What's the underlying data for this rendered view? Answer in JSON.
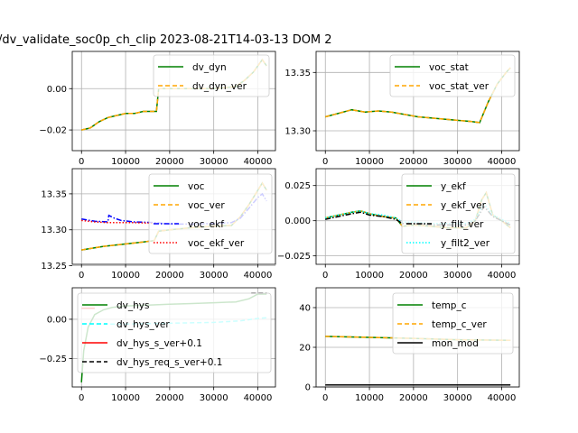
{
  "figure": {
    "title": "/dv_validate_soc0p_ch_clip   2023-08-21T14-03-13 DOM 2"
  },
  "chart_data": [
    {
      "type": "line",
      "xlim": [
        -2100,
        44000
      ],
      "ylim": [
        -0.03,
        0.018
      ],
      "xticks": [
        0,
        10000,
        20000,
        30000,
        40000
      ],
      "xtick_labels": [
        "0",
        "10000",
        "20000",
        "30000",
        "40000"
      ],
      "yticks": [
        -0.02,
        0.0
      ],
      "ytick_labels": [
        "−0.02",
        "0.00"
      ],
      "grid": true,
      "legend_position": "upper-right",
      "series": [
        {
          "name": "dv_dyn",
          "color": "#008000",
          "style": "solid",
          "x": [
            0,
            2000,
            4000,
            6000,
            8000,
            10000,
            12000,
            14000,
            16000,
            17000,
            17500,
            20000,
            25000,
            30000,
            35000,
            37000,
            39000,
            40000,
            41000,
            42000
          ],
          "y": [
            -0.02,
            -0.019,
            -0.016,
            -0.014,
            -0.013,
            -0.012,
            -0.012,
            -0.011,
            -0.011,
            -0.011,
            0.0,
            0.0,
            0.0,
            0.0,
            0.001,
            0.004,
            0.008,
            0.011,
            0.014,
            0.011
          ]
        },
        {
          "name": "dv_dyn_ver",
          "color": "#ffa500",
          "style": "dashed",
          "x": [
            0,
            2000,
            4000,
            6000,
            8000,
            10000,
            12000,
            14000,
            16000,
            17000,
            17500,
            20000,
            25000,
            30000,
            35000,
            37000,
            39000,
            40000,
            41000,
            42000
          ],
          "y": [
            -0.02,
            -0.019,
            -0.016,
            -0.014,
            -0.013,
            -0.012,
            -0.012,
            -0.011,
            -0.011,
            -0.011,
            0.0,
            0.0,
            0.0,
            0.0,
            0.001,
            0.004,
            0.008,
            0.011,
            0.014,
            0.011
          ]
        }
      ]
    },
    {
      "type": "line",
      "xlim": [
        -2100,
        44000
      ],
      "ylim": [
        13.283,
        13.368
      ],
      "xticks": [
        0,
        10000,
        20000,
        30000,
        40000
      ],
      "xtick_labels": [
        "0",
        "10000",
        "20000",
        "30000",
        "40000"
      ],
      "yticks": [
        13.3,
        13.35
      ],
      "ytick_labels": [
        "13.30",
        "13.35"
      ],
      "grid": true,
      "legend_position": "upper-right",
      "series": [
        {
          "name": "voc_stat",
          "color": "#008000",
          "style": "solid",
          "x": [
            0,
            3000,
            6000,
            9000,
            12000,
            15000,
            18000,
            21000,
            24000,
            27000,
            30000,
            33000,
            35000,
            37000,
            39000,
            41000,
            42000
          ],
          "y": [
            13.312,
            13.315,
            13.318,
            13.316,
            13.317,
            13.316,
            13.314,
            13.312,
            13.311,
            13.31,
            13.309,
            13.308,
            13.307,
            13.325,
            13.34,
            13.35,
            13.354
          ]
        },
        {
          "name": "voc_stat_ver",
          "color": "#ffa500",
          "style": "dashed",
          "x": [
            0,
            3000,
            6000,
            9000,
            12000,
            15000,
            18000,
            21000,
            24000,
            27000,
            30000,
            33000,
            35000,
            37000,
            39000,
            41000,
            42000
          ],
          "y": [
            13.312,
            13.315,
            13.318,
            13.316,
            13.317,
            13.316,
            13.314,
            13.312,
            13.311,
            13.31,
            13.309,
            13.308,
            13.307,
            13.325,
            13.34,
            13.35,
            13.354
          ]
        }
      ]
    },
    {
      "type": "line",
      "xlim": [
        -2100,
        44000
      ],
      "ylim": [
        13.252,
        13.385
      ],
      "xticks": [
        0,
        10000,
        20000,
        30000,
        40000
      ],
      "xtick_labels": [
        "0",
        "10000",
        "20000",
        "30000",
        "40000"
      ],
      "yticks": [
        13.25,
        13.3,
        13.35
      ],
      "ytick_labels": [
        "13.25",
        "13.30",
        "13.35"
      ],
      "grid": true,
      "legend_position": "upper-right",
      "series": [
        {
          "name": "voc",
          "color": "#008000",
          "style": "solid",
          "x": [
            0,
            2000,
            5000,
            8000,
            11000,
            14000,
            16500,
            17500,
            20000,
            25000,
            30000,
            34000,
            36000,
            38000,
            40000,
            41000,
            42000
          ],
          "y": [
            13.272,
            13.274,
            13.277,
            13.279,
            13.281,
            13.283,
            13.285,
            13.298,
            13.3,
            13.303,
            13.305,
            13.306,
            13.318,
            13.335,
            13.355,
            13.365,
            13.355
          ]
        },
        {
          "name": "voc_ver",
          "color": "#ffa500",
          "style": "dashed",
          "x": [
            0,
            2000,
            5000,
            8000,
            11000,
            14000,
            16500,
            17500,
            20000,
            25000,
            30000,
            34000,
            36000,
            38000,
            40000,
            41000,
            42000
          ],
          "y": [
            13.272,
            13.274,
            13.277,
            13.279,
            13.281,
            13.283,
            13.285,
            13.298,
            13.3,
            13.303,
            13.305,
            13.306,
            13.318,
            13.335,
            13.355,
            13.365,
            13.355
          ]
        },
        {
          "name": "voc_ekf",
          "color": "#0000ff",
          "style": "dashdot",
          "x": [
            0,
            3000,
            6000,
            6200,
            7500,
            9000,
            12000,
            17000,
            20000,
            25000,
            30000,
            34000,
            36000,
            38000,
            40000,
            41000,
            42000
          ],
          "y": [
            13.315,
            13.312,
            13.311,
            13.32,
            13.316,
            13.313,
            13.311,
            13.31,
            13.308,
            13.308,
            13.309,
            13.31,
            13.316,
            13.33,
            13.345,
            13.35,
            13.34
          ]
        },
        {
          "name": "voc_ekf_ver",
          "color": "#ff0000",
          "style": "dotted",
          "x": [
            0,
            3000,
            6000,
            9000,
            12000,
            17000
          ],
          "y": [
            13.313,
            13.311,
            13.31,
            13.31,
            13.31,
            13.309
          ]
        }
      ]
    },
    {
      "type": "line",
      "xlim": [
        -2100,
        44000
      ],
      "ylim": [
        -0.031,
        0.037
      ],
      "xticks": [
        0,
        10000,
        20000,
        30000,
        40000
      ],
      "xtick_labels": [
        "0",
        "10000",
        "20000",
        "30000",
        "40000"
      ],
      "yticks": [
        -0.025,
        0.0,
        0.025
      ],
      "ytick_labels": [
        "−0.025",
        "0.000",
        "0.025"
      ],
      "grid": true,
      "legend_position": "upper-right",
      "series": [
        {
          "name": "y_ekf",
          "color": "#008000",
          "style": "solid",
          "x": [
            0,
            3000,
            6000,
            8000,
            10000,
            13000,
            16000,
            17500,
            20000,
            24000,
            28000,
            32000,
            34000,
            35500,
            36500,
            38000,
            40000,
            42000
          ],
          "y": [
            0.002,
            0.004,
            0.006,
            0.007,
            0.005,
            0.003,
            0.002,
            -0.004,
            -0.003,
            -0.004,
            -0.005,
            -0.005,
            0.0,
            0.015,
            0.02,
            0.004,
            0.0,
            -0.005
          ]
        },
        {
          "name": "y_ekf_ver",
          "color": "#ffa500",
          "style": "dashed",
          "x": [
            0,
            3000,
            6000,
            8000,
            10000,
            13000,
            16000,
            17500,
            20000,
            24000,
            28000,
            32000,
            34000,
            35500,
            36500,
            38000,
            40000,
            42000
          ],
          "y": [
            0.002,
            0.004,
            0.006,
            0.007,
            0.005,
            0.003,
            0.002,
            -0.004,
            -0.003,
            -0.004,
            -0.005,
            -0.005,
            0.0,
            0.015,
            0.02,
            0.004,
            0.0,
            -0.005
          ]
        },
        {
          "name": "y_filt_ver",
          "color": "#000000",
          "style": "dashdot",
          "x": [
            0,
            3000,
            6000,
            8000,
            10000,
            13000,
            16000,
            17500,
            20000,
            24000,
            28000,
            32000,
            34000,
            36000,
            38000,
            40000,
            42000
          ],
          "y": [
            0.001,
            0.003,
            0.005,
            0.006,
            0.004,
            0.003,
            0.001,
            -0.002,
            -0.002,
            -0.003,
            -0.003,
            -0.003,
            0.0,
            0.01,
            0.003,
            0.0,
            -0.003
          ]
        },
        {
          "name": "y_filt2_ver",
          "color": "#00ffff",
          "style": "dotted",
          "x": [
            0,
            3000,
            6000,
            8000,
            10000,
            13000,
            16000,
            17500,
            20000,
            24000,
            28000,
            32000,
            34000,
            36000,
            38000,
            40000,
            42000
          ],
          "y": [
            0.002,
            0.004,
            0.006,
            0.007,
            0.005,
            0.004,
            0.002,
            -0.001,
            -0.001,
            -0.002,
            -0.002,
            -0.002,
            0.001,
            0.012,
            0.004,
            0.001,
            -0.002
          ]
        }
      ]
    },
    {
      "type": "line",
      "xlim": [
        -2100,
        44000
      ],
      "ylim": [
        -0.43,
        0.2
      ],
      "xticks": [
        0,
        10000,
        20000,
        30000,
        40000
      ],
      "xtick_labels": [
        "0",
        "10000",
        "20000",
        "30000",
        "40000"
      ],
      "yticks": [
        -0.25,
        0.0
      ],
      "ytick_labels": [
        "−0.25",
        "0.00"
      ],
      "grid": true,
      "legend_position": "upper-center",
      "series": [
        {
          "name": "dv_hys",
          "color": "#008000",
          "style": "solid",
          "x": [
            0,
            500,
            1500,
            3000,
            5000,
            7000,
            10000,
            15000,
            20000,
            25000,
            30000,
            35000,
            38000,
            40000,
            42000
          ],
          "y": [
            -0.4,
            -0.2,
            -0.05,
            0.03,
            0.06,
            0.075,
            0.085,
            0.09,
            0.095,
            0.1,
            0.105,
            0.11,
            0.13,
            0.16,
            0.16
          ]
        },
        {
          "name": "dv_hys_ver",
          "color": "#00ffff",
          "style": "dashed",
          "x": [
            0,
            5000,
            10000,
            20000,
            30000,
            36000,
            40000,
            42000
          ],
          "y": [
            -0.03,
            -0.03,
            -0.03,
            -0.025,
            -0.02,
            -0.01,
            0.005,
            0.01
          ]
        },
        {
          "name": "dv_hys_s_ver+0.1",
          "color": "#ff0000",
          "style": "solid",
          "x": [
            0,
            1000,
            2000,
            3000
          ],
          "y": [
            0.07,
            0.07,
            0.07,
            0.07
          ]
        },
        {
          "name": "dv_hys_req_s_ver+0.1",
          "color": "#000000",
          "style": "dashed",
          "x": [
            38500,
            40000,
            41000,
            42000
          ],
          "y": [
            0.165,
            0.165,
            0.165,
            0.165
          ]
        }
      ]
    },
    {
      "type": "line",
      "xlim": [
        -2100,
        44000
      ],
      "ylim": [
        0,
        50
      ],
      "xticks": [
        0,
        10000,
        20000,
        30000,
        40000
      ],
      "xtick_labels": [
        "0",
        "10000",
        "20000",
        "30000",
        "40000"
      ],
      "yticks": [
        0,
        20,
        40
      ],
      "ytick_labels": [
        "0",
        "20",
        "40"
      ],
      "grid": true,
      "legend_position": "upper-right",
      "series": [
        {
          "name": "temp_c",
          "color": "#008000",
          "style": "solid",
          "x": [
            0,
            10000,
            20000,
            30000,
            42000
          ],
          "y": [
            25.5,
            25.0,
            24.5,
            23.8,
            23.5
          ]
        },
        {
          "name": "temp_c_ver",
          "color": "#ffa500",
          "style": "dashed",
          "x": [
            0,
            10000,
            20000,
            30000,
            42000
          ],
          "y": [
            25.5,
            25.0,
            24.5,
            23.8,
            23.5
          ]
        },
        {
          "name": "mon_mod",
          "color": "#000000",
          "style": "solid",
          "x": [
            0,
            42000
          ],
          "y": [
            1,
            1
          ]
        }
      ]
    }
  ]
}
